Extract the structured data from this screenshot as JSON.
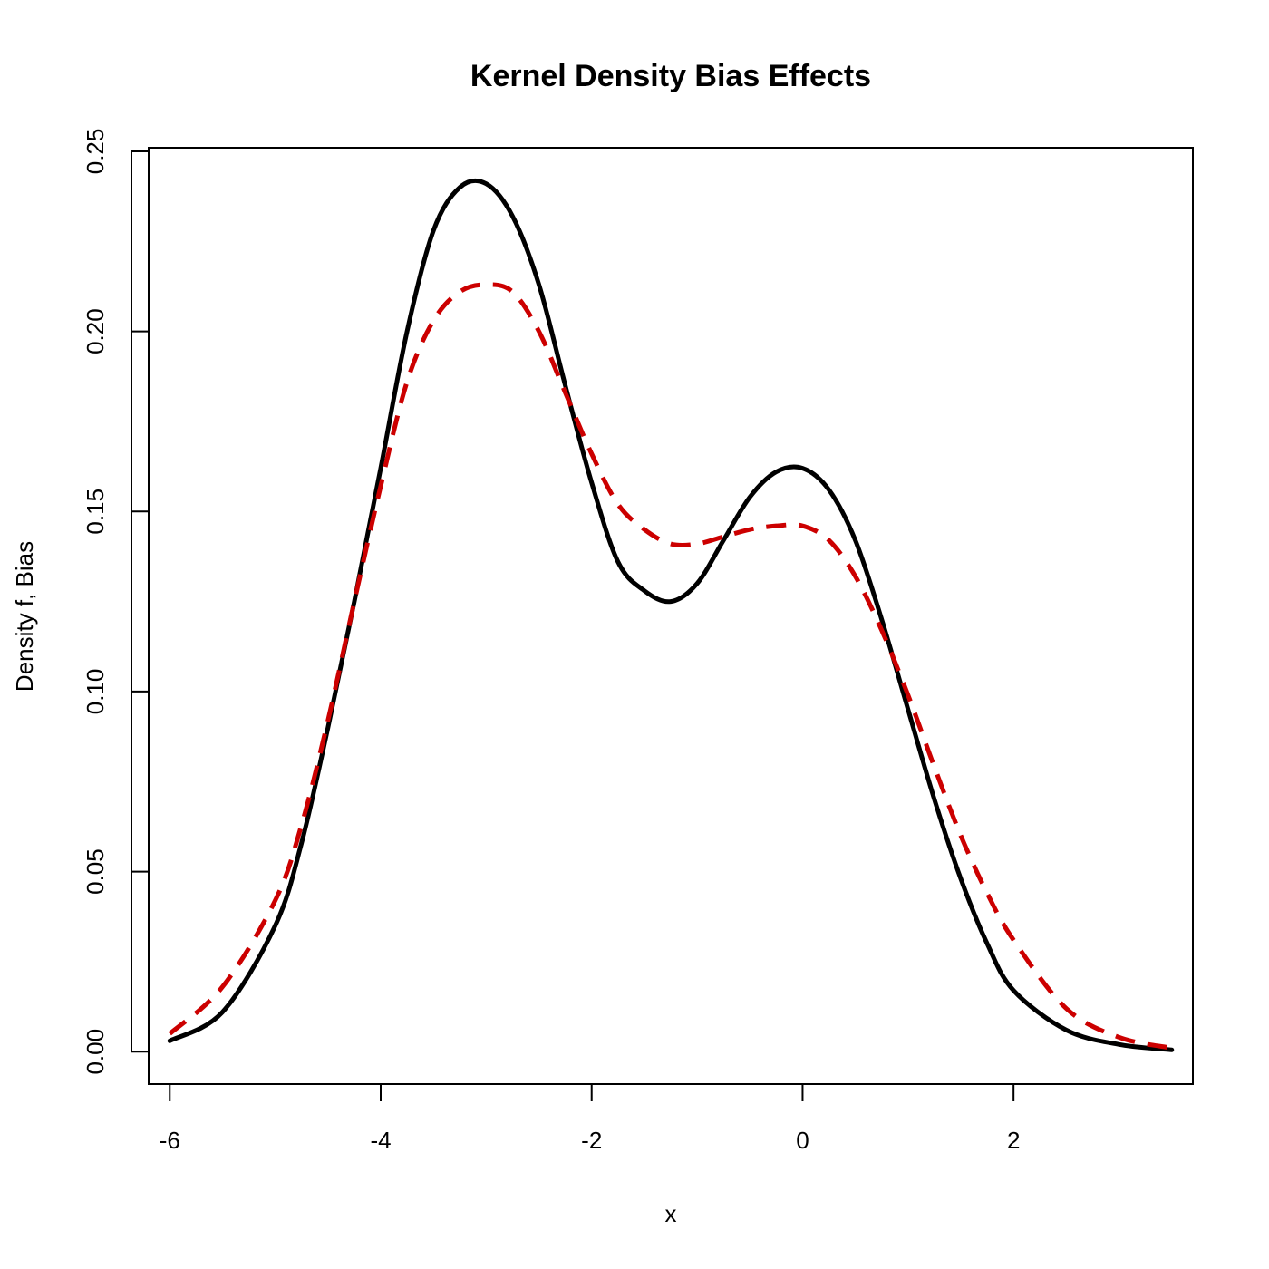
{
  "chart_data": {
    "type": "line",
    "title": "Kernel Density Bias Effects",
    "xlabel": "x",
    "ylabel": "Density f, Bias",
    "xlim": [
      -6.2,
      3.7
    ],
    "ylim": [
      -0.009,
      0.251
    ],
    "xticks": [
      -6,
      -4,
      -2,
      0,
      2
    ],
    "xtick_labels": [
      "-6",
      "-4",
      "-2",
      "0",
      "2"
    ],
    "yticks": [
      0.0,
      0.05,
      0.1,
      0.15,
      0.2,
      0.25
    ],
    "ytick_labels": [
      "0.00",
      "0.05",
      "0.10",
      "0.15",
      "0.20",
      "0.25"
    ],
    "grid": false,
    "legend": "none",
    "series": [
      {
        "color": "#000000",
        "style": "solid",
        "x": [
          -6.0,
          -5.5,
          -5.0,
          -4.75,
          -4.5,
          -4.25,
          -4.0,
          -3.75,
          -3.5,
          -3.25,
          -3.0,
          -2.75,
          -2.5,
          -2.25,
          -2.0,
          -1.75,
          -1.5,
          -1.25,
          -1.0,
          -0.75,
          -0.5,
          -0.25,
          0.0,
          0.25,
          0.5,
          0.75,
          1.0,
          1.25,
          1.5,
          1.75,
          2.0,
          2.5,
          3.0,
          3.5
        ],
        "y": [
          0.003,
          0.011,
          0.035,
          0.058,
          0.09,
          0.125,
          0.162,
          0.2,
          0.228,
          0.24,
          0.241,
          0.232,
          0.213,
          0.185,
          0.158,
          0.136,
          0.128,
          0.125,
          0.13,
          0.142,
          0.154,
          0.161,
          0.162,
          0.156,
          0.142,
          0.12,
          0.095,
          0.07,
          0.048,
          0.03,
          0.017,
          0.006,
          0.002,
          0.0005
        ]
      },
      {
        "color": "#cc0000",
        "style": "dashed",
        "x": [
          -6.0,
          -5.5,
          -5.0,
          -4.75,
          -4.5,
          -4.25,
          -4.0,
          -3.75,
          -3.5,
          -3.25,
          -3.0,
          -2.75,
          -2.5,
          -2.25,
          -2.0,
          -1.75,
          -1.5,
          -1.25,
          -1.0,
          -0.75,
          -0.5,
          -0.25,
          0.0,
          0.25,
          0.5,
          0.75,
          1.0,
          1.25,
          1.5,
          1.75,
          2.0,
          2.5,
          3.0,
          3.5
        ],
        "y": [
          0.005,
          0.018,
          0.042,
          0.063,
          0.092,
          0.125,
          0.157,
          0.186,
          0.203,
          0.211,
          0.213,
          0.211,
          0.2,
          0.183,
          0.166,
          0.152,
          0.145,
          0.141,
          0.141,
          0.143,
          0.145,
          0.146,
          0.146,
          0.142,
          0.132,
          0.117,
          0.099,
          0.079,
          0.06,
          0.044,
          0.031,
          0.012,
          0.004,
          0.001
        ]
      }
    ]
  }
}
